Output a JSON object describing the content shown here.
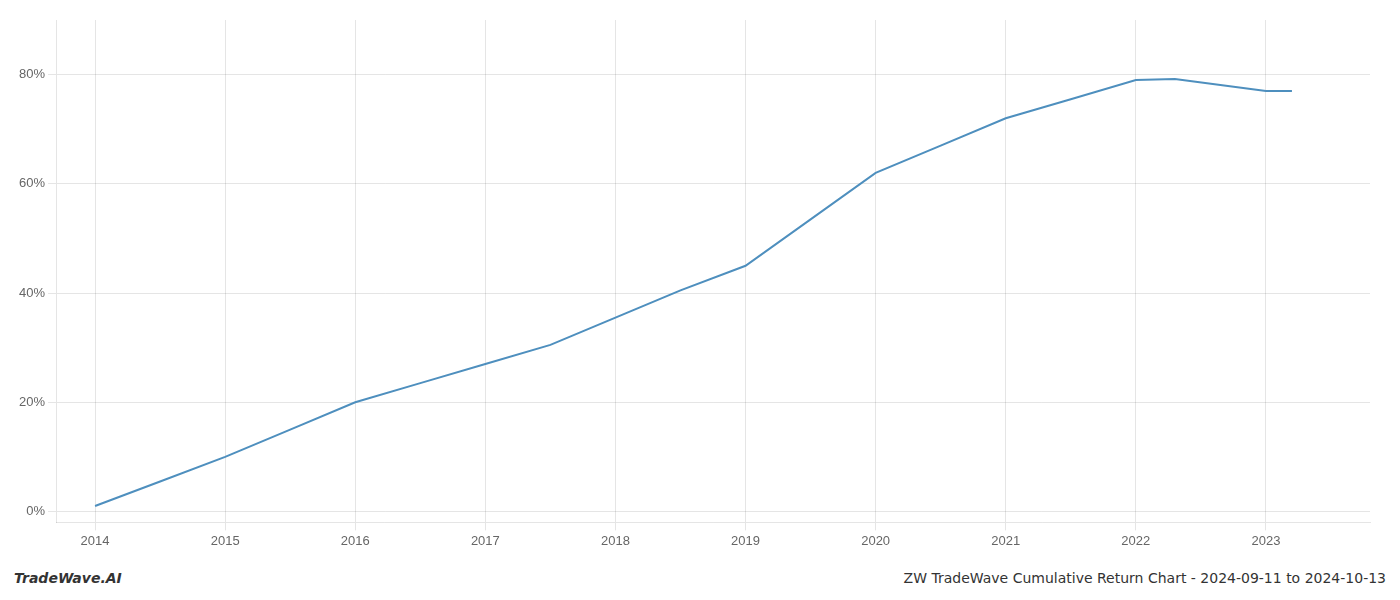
{
  "chart_data": {
    "type": "line",
    "x": [
      2014.0,
      2014.5,
      2015.0,
      2015.5,
      2016.0,
      2016.5,
      2017.0,
      2017.5,
      2018.0,
      2018.5,
      2019.0,
      2019.5,
      2020.0,
      2020.5,
      2021.0,
      2021.5,
      2022.0,
      2022.3,
      2023.0,
      2023.2
    ],
    "values": [
      0.01,
      0.055,
      0.1,
      0.15,
      0.2,
      0.235,
      0.27,
      0.305,
      0.355,
      0.405,
      0.45,
      0.535,
      0.62,
      0.67,
      0.72,
      0.755,
      0.79,
      0.792,
      0.77,
      0.77
    ],
    "color": "#4e8fbe",
    "xlim": [
      2013.7,
      2023.8
    ],
    "ylim": [
      -0.02,
      0.9
    ],
    "xticks": [
      2014,
      2015,
      2016,
      2017,
      2018,
      2019,
      2020,
      2021,
      2022,
      2023
    ],
    "yticks": [
      {
        "value": 0.0,
        "label": "0%"
      },
      {
        "value": 0.2,
        "label": "20%"
      },
      {
        "value": 0.4,
        "label": "40%"
      },
      {
        "value": 0.6,
        "label": "60%"
      },
      {
        "value": 0.8,
        "label": "80%"
      }
    ],
    "grid": true,
    "annotations": [
      "TradeWave.AI",
      "ZW TradeWave Cumulative Return Chart - 2024-09-11 to 2024-10-13"
    ]
  }
}
